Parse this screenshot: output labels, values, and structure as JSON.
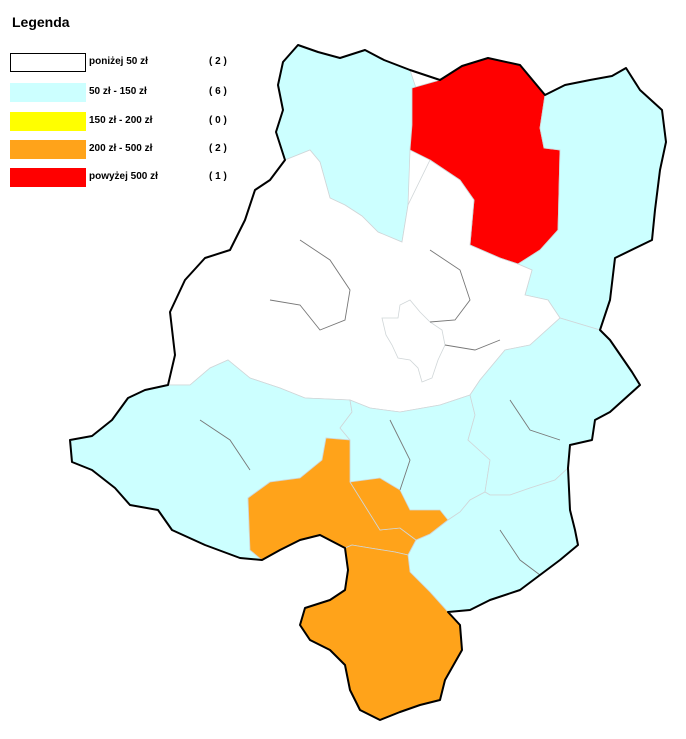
{
  "legend": {
    "title": "Legenda",
    "items": [
      {
        "label": "poniżej 50 zł",
        "count": "( 2 )",
        "color": "#ffffff"
      },
      {
        "label": "50 zł - 150 zł",
        "count": "( 6 )",
        "color": "#ccffff"
      },
      {
        "label": "150 zł - 200 zł",
        "count": "( 0 )",
        "color": "#ffff00"
      },
      {
        "label": "200 zł - 500 zł",
        "count": "( 2 )",
        "color": "#ffa31a"
      },
      {
        "label": "powyżej 500 zł",
        "count": "( 1 )",
        "color": "#ff0000"
      }
    ]
  },
  "map": {
    "regions": [
      {
        "name": "north-west-district",
        "category": 1
      },
      {
        "name": "north-red-district",
        "category": 4
      },
      {
        "name": "north-east-district",
        "category": 1
      },
      {
        "name": "central-district",
        "category": 0
      },
      {
        "name": "city-district",
        "category": 0
      },
      {
        "name": "south-west-district",
        "category": 1
      },
      {
        "name": "south-central-district",
        "category": 1
      },
      {
        "name": "east-district",
        "category": 1
      },
      {
        "name": "south-east-district",
        "category": 1
      },
      {
        "name": "orange-west-district",
        "category": 3
      },
      {
        "name": "orange-south-district",
        "category": 3
      }
    ]
  }
}
